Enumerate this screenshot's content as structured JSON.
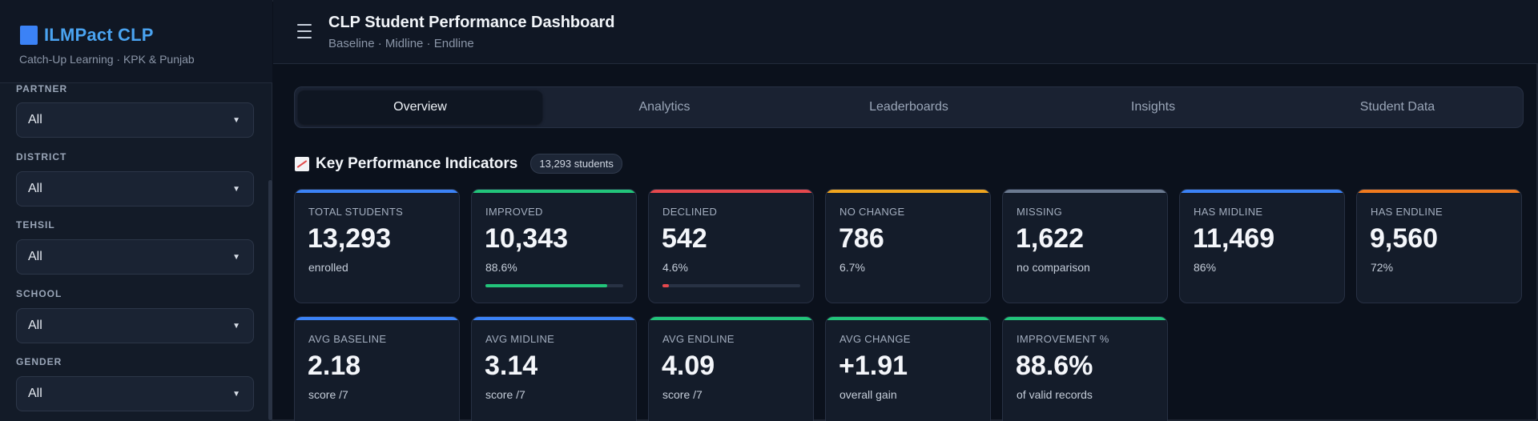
{
  "app": {
    "name": "ILMPact CLP",
    "subtitle": "Catch-Up Learning · KPK & Punjab",
    "brand_color": "#3b82f6"
  },
  "sidebar": {
    "filters": [
      {
        "label": "PARTNER",
        "value": "All"
      },
      {
        "label": "DISTRICT",
        "value": "All"
      },
      {
        "label": "TEHSIL",
        "value": "All"
      },
      {
        "label": "SCHOOL",
        "value": "All"
      },
      {
        "label": "GENDER",
        "value": "All"
      }
    ]
  },
  "header": {
    "title": "CLP Student Performance Dashboard",
    "subtitle": "Baseline · Midline · Endline"
  },
  "tabs": [
    {
      "label": "Overview",
      "active": true
    },
    {
      "label": "Analytics",
      "active": false
    },
    {
      "label": "Leaderboards",
      "active": false
    },
    {
      "label": "Insights",
      "active": false
    },
    {
      "label": "Student Data",
      "active": false
    }
  ],
  "kpi": {
    "title": "Key Performance Indicators",
    "badge": "13,293 students",
    "cards": [
      {
        "label": "TOTAL STUDENTS",
        "value": "13,293",
        "sub": "enrolled",
        "color": "#3b82f6"
      },
      {
        "label": "IMPROVED",
        "value": "10,343",
        "sub": "88.6%",
        "color": "#22c47a",
        "progress": 0.886
      },
      {
        "label": "DECLINED",
        "value": "542",
        "sub": "4.6%",
        "color": "#e5484d",
        "progress": 0.046
      },
      {
        "label": "NO CHANGE",
        "value": "786",
        "sub": "6.7%",
        "color": "#f0a51e"
      },
      {
        "label": "MISSING",
        "value": "1,622",
        "sub": "no comparison",
        "color": "#6b7a90"
      },
      {
        "label": "HAS MIDLINE",
        "value": "11,469",
        "sub": "86%",
        "color": "#3b82f6"
      },
      {
        "label": "HAS ENDLINE",
        "value": "9,560",
        "sub": "72%",
        "color": "#f07a1e"
      },
      {
        "label": "AVG BASELINE",
        "value": "2.18",
        "sub": "score /7",
        "color": "#3b82f6"
      },
      {
        "label": "AVG MIDLINE",
        "value": "3.14",
        "sub": "score /7",
        "color": "#3b82f6"
      },
      {
        "label": "AVG ENDLINE",
        "value": "4.09",
        "sub": "score /7",
        "color": "#22c47a"
      },
      {
        "label": "AVG CHANGE",
        "value": "+1.91",
        "sub": "overall gain",
        "color": "#22c47a"
      },
      {
        "label": "IMPROVEMENT %",
        "value": "88.6%",
        "sub": "of valid records",
        "color": "#22c47a"
      }
    ]
  }
}
